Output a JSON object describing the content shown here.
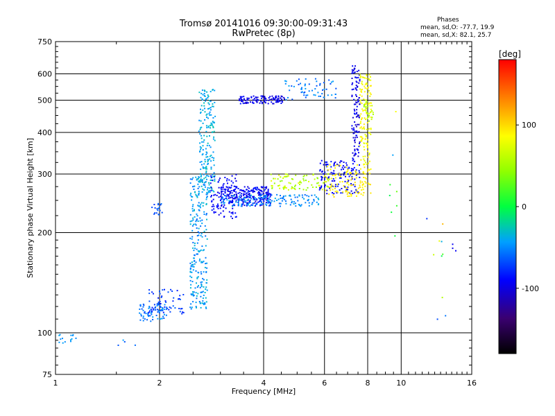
{
  "header": {
    "title_line1": "Tromsø 20141016 09:30:00-09:31:43",
    "title_line2": "RwPretec (8p)"
  },
  "stats": {
    "heading": "Phases",
    "line_o": "mean, sd,O: -77.7, 19.9",
    "line_x": "mean, sd,X:  82.1, 25.7"
  },
  "colorbar": {
    "unit_label": "[deg]",
    "min": -180,
    "max": 180,
    "tick_values": [
      -100,
      0,
      100
    ],
    "tick_labels": [
      "-100",
      "0",
      "100"
    ]
  },
  "chart_data": {
    "type": "scatter",
    "title": "Tromsø 20141016 09:30:00-09:31:43",
    "subtitle": "RwPretec (8p)",
    "xlabel": "Frequency [MHz]",
    "ylabel": "Stationary phase Virtual Height [km]",
    "x_scale": "log",
    "y_scale": "log",
    "xlim": [
      1,
      16
    ],
    "ylim": [
      75,
      750
    ],
    "x_ticks": [
      1,
      2,
      4,
      6,
      8,
      10,
      16
    ],
    "x_tick_labels": [
      "1",
      "2",
      "4",
      "6",
      "8",
      "10",
      "16"
    ],
    "y_ticks": [
      75,
      100,
      200,
      300,
      400,
      500,
      600,
      750
    ],
    "y_tick_labels": [
      "75",
      "100",
      "200",
      "300",
      "400",
      "500",
      "600",
      "750"
    ],
    "grid": true,
    "color_encoding": "phase [deg]",
    "clusters": [
      {
        "x": [
          1.02,
          1.15
        ],
        "y": [
          93,
          99
        ],
        "phase": [
          -50,
          -40
        ],
        "n": 14
      },
      {
        "x": [
          1.5,
          1.72
        ],
        "y": [
          90,
          96
        ],
        "phase": [
          -80,
          -20
        ],
        "n": 4
      },
      {
        "x": [
          1.75,
          2.1
        ],
        "y": [
          108,
          122
        ],
        "phase": [
          -70,
          -40
        ],
        "n": 70
      },
      {
        "x": [
          1.85,
          2.35
        ],
        "y": [
          113,
          135
        ],
        "phase": [
          -85,
          -60
        ],
        "n": 60
      },
      {
        "x": [
          1.9,
          2.05
        ],
        "y": [
          225,
          245
        ],
        "phase": [
          -75,
          -55
        ],
        "n": 18
      },
      {
        "x": [
          2.45,
          2.75
        ],
        "y": [
          118,
          300
        ],
        "phase": [
          -60,
          -30
        ],
        "n": 240
      },
      {
        "x": [
          2.6,
          2.9
        ],
        "y": [
          260,
          540
        ],
        "phase": [
          -50,
          -25
        ],
        "n": 200
      },
      {
        "x": [
          2.8,
          3.35
        ],
        "y": [
          220,
          300
        ],
        "phase": [
          -100,
          -80
        ],
        "n": 90
      },
      {
        "x": [
          3.0,
          4.2
        ],
        "y": [
          240,
          275
        ],
        "phase": [
          -105,
          -80
        ],
        "n": 250
      },
      {
        "x": [
          3.4,
          4.6
        ],
        "y": [
          488,
          515
        ],
        "phase": [
          -110,
          -85
        ],
        "n": 110
      },
      {
        "x": [
          4.6,
          6.5
        ],
        "y": [
          500,
          580
        ],
        "phase": [
          -70,
          -40
        ],
        "n": 60
      },
      {
        "x": [
          4.2,
          6.2
        ],
        "y": [
          268,
          300
        ],
        "phase": [
          40,
          80
        ],
        "n": 90
      },
      {
        "x": [
          3.0,
          5.8
        ],
        "y": [
          240,
          260
        ],
        "phase": [
          -60,
          -35
        ],
        "n": 140
      },
      {
        "x": [
          5.8,
          7.6
        ],
        "y": [
          262,
          330
        ],
        "phase": [
          -100,
          -80
        ],
        "n": 140
      },
      {
        "x": [
          7.2,
          7.6
        ],
        "y": [
          330,
          640
        ],
        "phase": [
          -110,
          -85
        ],
        "n": 110
      },
      {
        "x": [
          6.0,
          8.2
        ],
        "y": [
          255,
          320
        ],
        "phase": [
          85,
          100
        ],
        "n": 120
      },
      {
        "x": [
          7.6,
          8.2
        ],
        "y": [
          320,
          600
        ],
        "phase": [
          75,
          95
        ],
        "n": 130
      },
      {
        "x": [
          7.8,
          8.3
        ],
        "y": [
          420,
          500
        ],
        "phase": [
          45,
          70
        ],
        "n": 25
      },
      {
        "x": [
          9.2,
          9.8
        ],
        "y": [
          185,
          520
        ],
        "phase": [
          -100,
          100
        ],
        "n": 8
      },
      {
        "x": [
          11.8,
          13.5
        ],
        "y": [
          105,
          230
        ],
        "phase": [
          -110,
          120
        ],
        "n": 10
      },
      {
        "x": [
          14.0,
          14.5
        ],
        "y": [
          175,
          185
        ],
        "phase": [
          -100,
          -90
        ],
        "n": 3
      }
    ]
  }
}
